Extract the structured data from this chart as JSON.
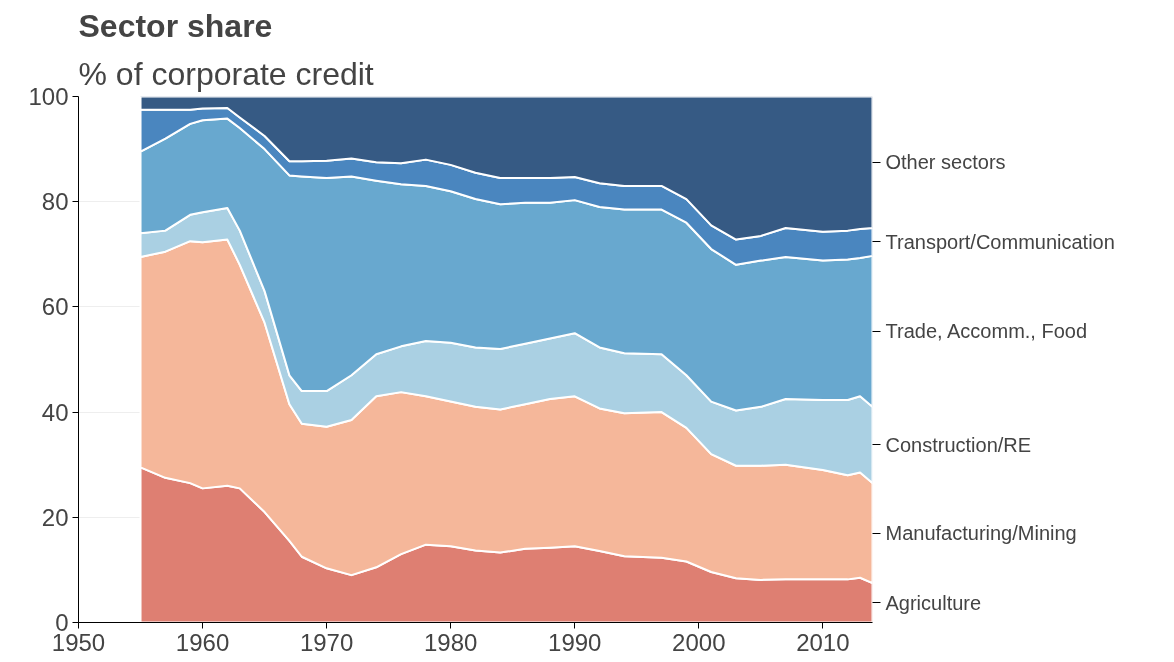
{
  "chart_data": {
    "type": "area",
    "stacked": true,
    "title": "Sector share",
    "subtitle": "% of corporate credit",
    "x": [
      1955,
      1957,
      1959,
      1960,
      1962,
      1963,
      1965,
      1967,
      1968,
      1970,
      1972,
      1974,
      1976,
      1978,
      1980,
      1982,
      1984,
      1986,
      1988,
      1990,
      1992,
      1994,
      1997,
      1999,
      2001,
      2003,
      2005,
      2007,
      2010,
      2012,
      2013,
      2014
    ],
    "series": [
      {
        "name": "Agriculture",
        "color": "#de7f72",
        "values": [
          29.5,
          27.5,
          26.5,
          25.5,
          26,
          25.5,
          21,
          15.5,
          12.5,
          10.3,
          9,
          10.5,
          13,
          14.8,
          14.5,
          13.7,
          13.3,
          14,
          14.2,
          14.5,
          13.6,
          12.6,
          12.3,
          11.6,
          9.6,
          8.4,
          8.1,
          8.2,
          8.2,
          8.2,
          8.5,
          7.5
        ]
      },
      {
        "name": "Manufacturing/Mining",
        "color": "#f5b79a",
        "values": [
          40,
          43,
          46,
          46.8,
          46.8,
          42.5,
          36,
          26,
          25.3,
          26.9,
          29.5,
          32.5,
          30.8,
          28.2,
          27.5,
          27.3,
          27.2,
          27.5,
          28.3,
          28.5,
          27.1,
          27.2,
          27.7,
          25.4,
          22.4,
          21.4,
          21.7,
          21.8,
          20.8,
          19.8,
          20,
          19
        ]
      },
      {
        "name": "Construction/RE",
        "color": "#aad0e3",
        "values": [
          4.5,
          4,
          5,
          5.7,
          6,
          6.5,
          6,
          5.5,
          6.2,
          6.8,
          8.5,
          8,
          8.7,
          10.5,
          11.2,
          11.3,
          11.5,
          11.5,
          11.5,
          12,
          11.6,
          11.4,
          11,
          10,
          10,
          10.5,
          11.2,
          12.5,
          13.3,
          14.3,
          14.5,
          14.5
        ]
      },
      {
        "name": "Trade, Accomm., Food",
        "color": "#68a8cf",
        "values": [
          15.5,
          17.5,
          17.3,
          17.5,
          17,
          19.5,
          27,
          38,
          40.8,
          40.5,
          37.8,
          33,
          30.8,
          29.5,
          28.8,
          28.2,
          27.5,
          26.8,
          25.8,
          25.3,
          26.7,
          27.3,
          27.5,
          29,
          29,
          27.7,
          27.8,
          27,
          26.5,
          26.7,
          26.3,
          28.7
        ]
      },
      {
        "name": "Transport/Communication",
        "color": "#4a86bf",
        "values": [
          8,
          5.5,
          2.7,
          2.2,
          2,
          2,
          2.5,
          2.7,
          2.9,
          3.3,
          3.4,
          3.5,
          4,
          5,
          5,
          5,
          5,
          4.7,
          4.7,
          4.4,
          4.5,
          4.5,
          4.5,
          4.5,
          4.5,
          4.8,
          4.7,
          5.5,
          5.5,
          5.5,
          5.5,
          5.3
        ]
      },
      {
        "name": "Other sectors",
        "color": "#365a84",
        "values": [
          2.5,
          2.5,
          2.5,
          2.3,
          2.2,
          4,
          7.5,
          12.3,
          12.3,
          12.2,
          11.8,
          12.5,
          12.7,
          12,
          13,
          14.5,
          15.5,
          15.5,
          15.5,
          15.3,
          16.5,
          17,
          17,
          19.5,
          24.5,
          27.2,
          26.5,
          25,
          25.7,
          25.5,
          25.2,
          25
        ]
      }
    ],
    "xlim": [
      1950,
      2014
    ],
    "xticks": [
      1950,
      1960,
      1970,
      1980,
      1990,
      2000,
      2010
    ],
    "ylim": [
      0,
      100
    ],
    "yticks": [
      0,
      20,
      40,
      60,
      80,
      100
    ],
    "grid": "y"
  }
}
